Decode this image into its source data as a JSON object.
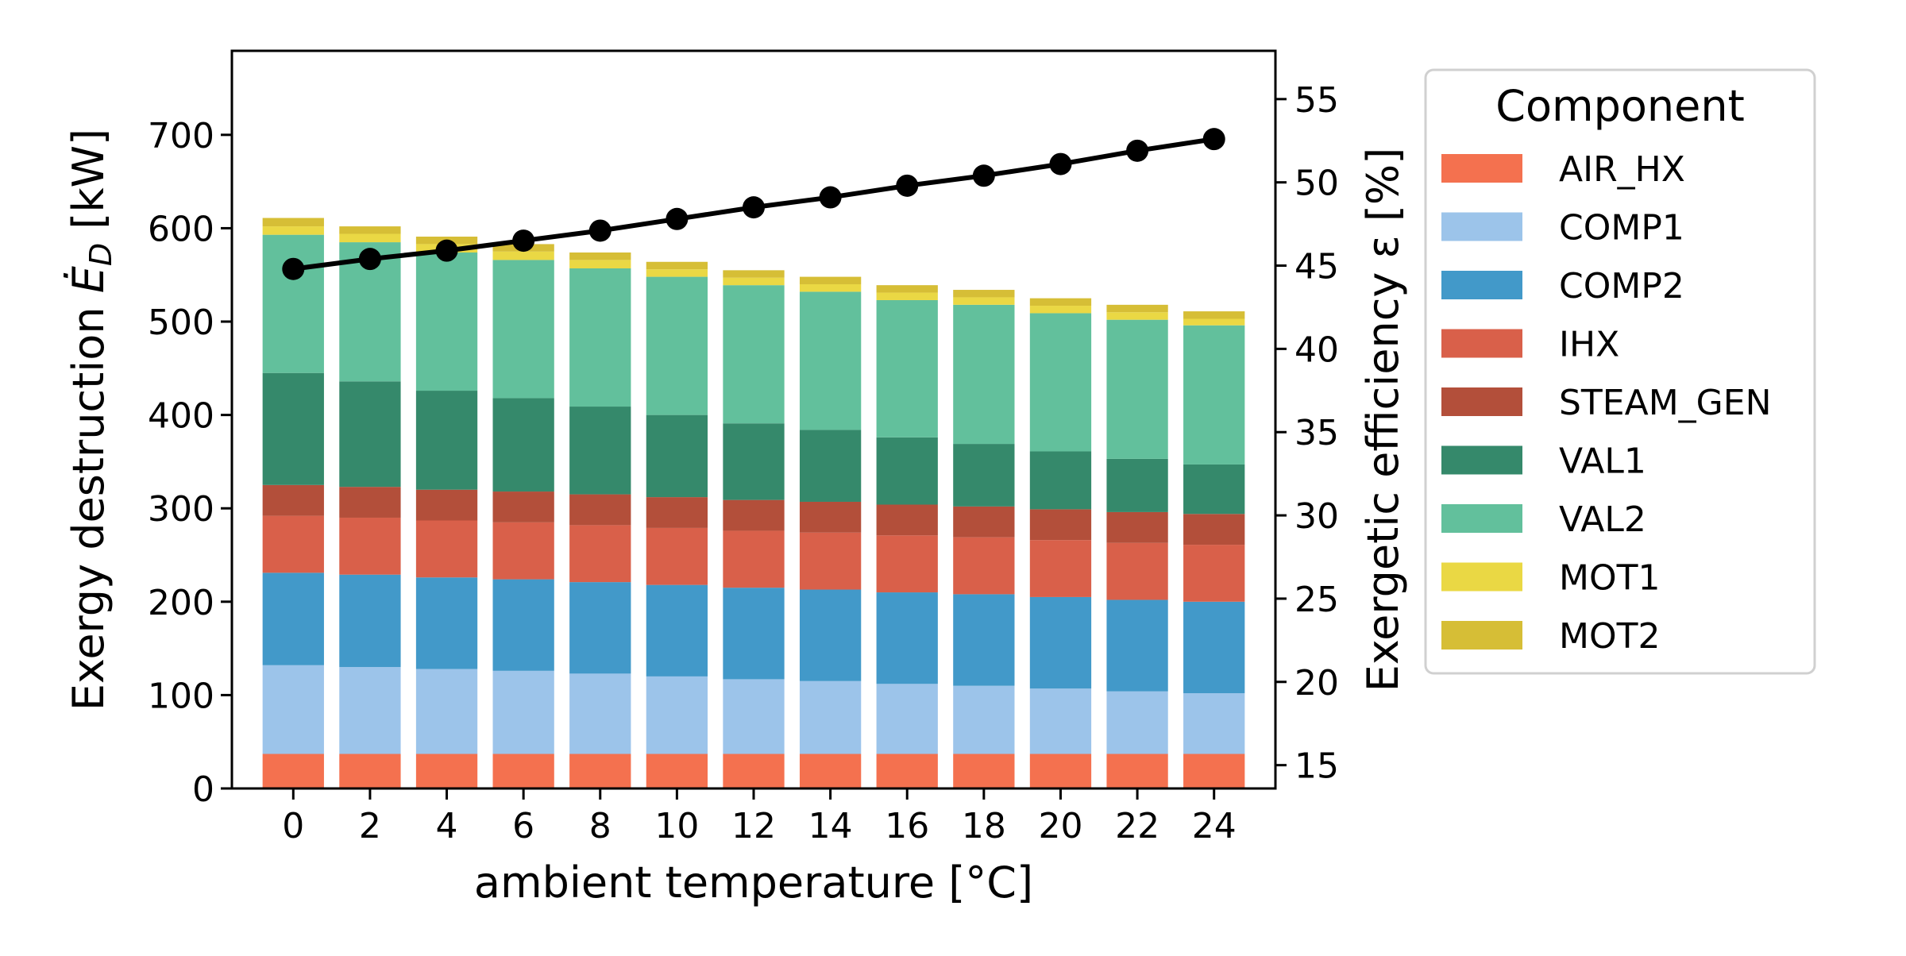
{
  "chart_data": {
    "type": "bar",
    "subtype": "stacked-bar-with-line",
    "xlabel": "ambient temperature [°C]",
    "ylabel_left_pre": "Exergy destruction ",
    "ylabel_left_symbol": "Ė",
    "ylabel_left_sub": "D",
    "ylabel_left_post": " [kW]",
    "ylabel_right": "Exergetic efficiency ε [%]",
    "categories": [
      "0",
      "2",
      "4",
      "6",
      "8",
      "10",
      "12",
      "14",
      "16",
      "18",
      "20",
      "22",
      "24"
    ],
    "ylim_left": [
      0,
      790
    ],
    "yticks_left": [
      0,
      100,
      200,
      300,
      400,
      500,
      600,
      700
    ],
    "ylim_right": [
      13.6,
      57.9
    ],
    "yticks_right": [
      15,
      20,
      25,
      30,
      35,
      40,
      45,
      50,
      55
    ],
    "grid": false,
    "legend": {
      "title": "Component",
      "placement": "outside-right"
    },
    "series": [
      {
        "name": "AIR_HX",
        "color": "#f4714f",
        "values": [
          37,
          37,
          37,
          37,
          37,
          37,
          37,
          37,
          37,
          37,
          37,
          37,
          37
        ]
      },
      {
        "name": "COMP1",
        "color": "#9cc4ea",
        "values": [
          95,
          93,
          91,
          89,
          86,
          83,
          80,
          78,
          75,
          73,
          70,
          67,
          65
        ]
      },
      {
        "name": "COMP2",
        "color": "#4299c9",
        "values": [
          99,
          99,
          98,
          98,
          98,
          98,
          98,
          98,
          98,
          98,
          98,
          98,
          98
        ]
      },
      {
        "name": "IHX",
        "color": "#d9604a",
        "values": [
          61,
          61,
          61,
          61,
          61,
          61,
          61,
          61,
          61,
          61,
          61,
          61,
          61
        ]
      },
      {
        "name": "STEAM_GEN",
        "color": "#b34f3a",
        "values": [
          33,
          33,
          33,
          33,
          33,
          33,
          33,
          33,
          33,
          33,
          33,
          33,
          33
        ]
      },
      {
        "name": "VAL1",
        "color": "#35896b",
        "values": [
          120,
          113,
          106,
          100,
          94,
          88,
          82,
          77,
          72,
          67,
          62,
          57,
          53
        ]
      },
      {
        "name": "VAL2",
        "color": "#62c09c",
        "values": [
          148,
          149,
          148,
          148,
          148,
          148,
          148,
          148,
          147,
          149,
          148,
          149,
          149
        ]
      },
      {
        "name": "MOT1",
        "color": "#ead844",
        "values": [
          9,
          9,
          9,
          9,
          9,
          8,
          8,
          8,
          8,
          8,
          8,
          8,
          7
        ]
      },
      {
        "name": "MOT2",
        "color": "#d6be36",
        "values": [
          9,
          8,
          8,
          8,
          8,
          8,
          8,
          8,
          8,
          8,
          8,
          8,
          8
        ]
      }
    ],
    "line": {
      "name": "Exergetic efficiency",
      "color": "#000000",
      "values": [
        44.8,
        45.4,
        45.9,
        46.5,
        47.1,
        47.8,
        48.5,
        49.1,
        49.8,
        50.4,
        51.1,
        51.9,
        52.6
      ]
    }
  }
}
